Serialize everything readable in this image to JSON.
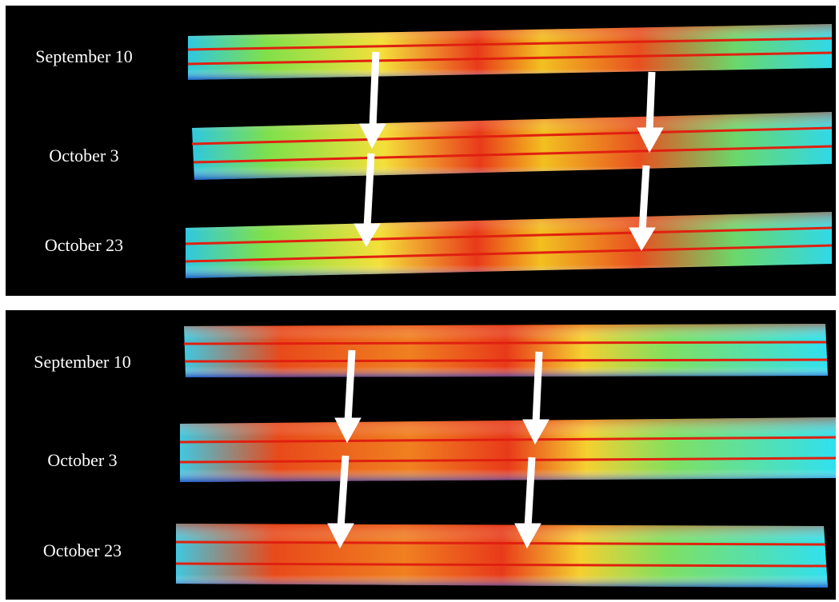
{
  "panels": [
    {
      "labels": [
        "September 10",
        "October 3",
        "October 23"
      ]
    },
    {
      "labels": [
        "September 10",
        "October 3",
        "October 23"
      ]
    }
  ]
}
